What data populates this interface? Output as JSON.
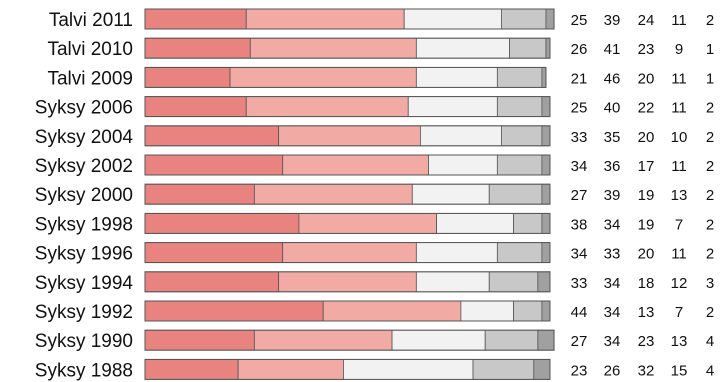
{
  "chart_data": {
    "type": "bar",
    "orientation": "horizontal",
    "stacked": true,
    "categories": [
      "Talvi 2011",
      "Talvi 2010",
      "Talvi 2009",
      "Syksy 2006",
      "Syksy 2004",
      "Syksy 2002",
      "Syksy 2000",
      "Syksy 1998",
      "Syksy 1996",
      "Syksy 1994",
      "Syksy 1992",
      "Syksy 1990",
      "Syksy 1988"
    ],
    "series": [
      {
        "color": "#e8837f",
        "values": [
          25,
          26,
          21,
          25,
          33,
          34,
          27,
          38,
          34,
          33,
          44,
          27,
          23
        ]
      },
      {
        "color": "#f2aaa4",
        "values": [
          39,
          41,
          46,
          40,
          35,
          36,
          39,
          34,
          33,
          34,
          34,
          34,
          26
        ]
      },
      {
        "color": "#f2f2f2",
        "values": [
          24,
          23,
          20,
          22,
          20,
          17,
          19,
          19,
          20,
          18,
          13,
          23,
          32
        ]
      },
      {
        "color": "#c8c8c8",
        "values": [
          11,
          9,
          11,
          11,
          10,
          11,
          13,
          7,
          11,
          12,
          7,
          13,
          15
        ]
      },
      {
        "color": "#a0a0a0",
        "values": [
          2,
          1,
          1,
          2,
          2,
          2,
          2,
          2,
          2,
          3,
          2,
          4,
          4
        ]
      }
    ],
    "title": "",
    "xlabel": "",
    "ylabel": "",
    "xlim": [
      0,
      100
    ],
    "grid": false,
    "legend": "none",
    "value_labels_on_right": true
  }
}
